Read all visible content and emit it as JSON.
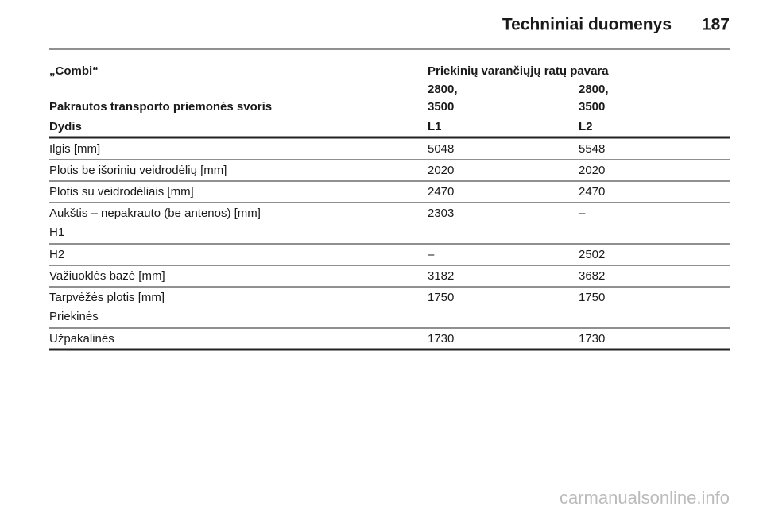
{
  "header": {
    "title": "Techniniai duomenys",
    "page": "187"
  },
  "table": {
    "head": [
      [
        [
          "„Combi“"
        ],
        [
          "Priekinių varančiųjų ratų pavara"
        ]
      ],
      [
        [
          "Pakrautos transporto priemonės svoris"
        ],
        [
          "2800,",
          "3500"
        ],
        [
          "2800,",
          "3500"
        ]
      ],
      [
        [
          "Dydis"
        ],
        [
          "L1"
        ],
        [
          "L2"
        ]
      ]
    ],
    "rows": [
      [
        [
          "Ilgis [mm]"
        ],
        [
          "5048"
        ],
        [
          "5548"
        ]
      ],
      [
        [
          "Plotis be išorinių veidrodėlių [mm]"
        ],
        [
          "2020"
        ],
        [
          "2020"
        ]
      ],
      [
        [
          "Plotis su veidrodėliais [mm]"
        ],
        [
          "2470"
        ],
        [
          "2470"
        ]
      ],
      [
        [
          "Aukštis – nepakrauto (be antenos) [mm]",
          "H1"
        ],
        [
          "2303"
        ],
        [
          "–"
        ]
      ],
      [
        [
          "H2"
        ],
        [
          "–"
        ],
        [
          "2502"
        ]
      ],
      [
        [
          "Važiuoklės bazė [mm]"
        ],
        [
          "3182"
        ],
        [
          "3682"
        ]
      ],
      [
        [
          "Tarpvėžės plotis [mm]",
          "Priekinės"
        ],
        [
          "1750"
        ],
        [
          "1750"
        ]
      ],
      [
        [
          "Užpakalinės"
        ],
        [
          "1730"
        ],
        [
          "1730"
        ]
      ]
    ]
  },
  "watermark": "carmanualsonline.info"
}
